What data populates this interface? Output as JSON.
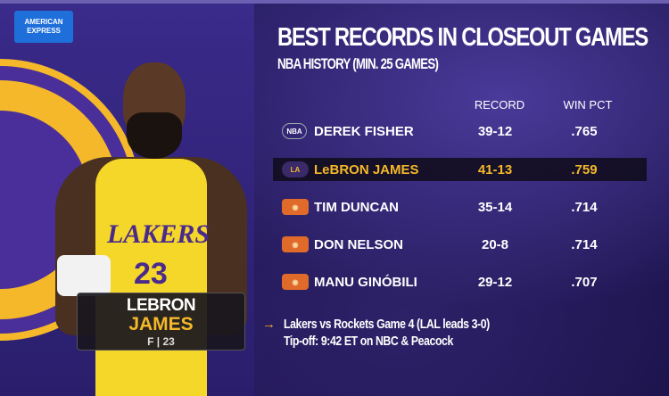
{
  "sponsor": {
    "logo_text": "AMERICAN EXPRESS"
  },
  "player_card": {
    "first_name": "LEBRON",
    "last_name": "JAMES",
    "position_number": "F | 23",
    "jersey_text": "LAKERS",
    "jersey_number": "23"
  },
  "graphic": {
    "title": "BEST RECORDS IN CLOSEOUT GAMES",
    "subtitle": "NBA HISTORY (MIN. 25 GAMES)"
  },
  "table": {
    "columns": [
      "RECORD",
      "WIN PCT"
    ],
    "rows": [
      {
        "icon": "nba-logo-icon",
        "icon_text": "NBA",
        "name": "DEREK FISHER",
        "record": "39-12",
        "win_pct": ".765",
        "highlighted": false
      },
      {
        "icon": "lakers-logo-icon",
        "icon_text": "LA",
        "name": "LeBRON JAMES",
        "record": "41-13",
        "win_pct": ".759",
        "highlighted": true
      },
      {
        "icon": "trophy-icon",
        "icon_text": "◉",
        "name": "TIM DUNCAN",
        "record": "35-14",
        "win_pct": ".714",
        "highlighted": false
      },
      {
        "icon": "trophy-icon",
        "icon_text": "◉",
        "name": "DON NELSON",
        "record": "20-8",
        "win_pct": ".714",
        "highlighted": false
      },
      {
        "icon": "trophy-icon",
        "icon_text": "◉",
        "name": "MANU GINÓBILI",
        "record": "29-12",
        "win_pct": ".707",
        "highlighted": false
      }
    ]
  },
  "footer": {
    "arrow": "→",
    "line1": "Lakers vs Rockets Game 4  (LAL leads 3-0)",
    "line2": "Tip-off: 9:42 ET on NBC & Peacock"
  },
  "colors": {
    "accent": "#f5b82a",
    "background": "#221858"
  }
}
